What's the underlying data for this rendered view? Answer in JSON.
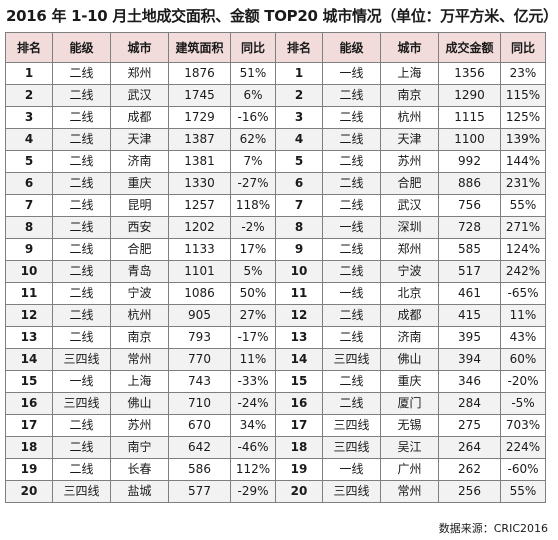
{
  "title": "2016 年 1-10 月土地成交面积、金额 TOP20 城市情况（单位：万平方米、亿元）",
  "headers": [
    "排名",
    "能级",
    "城市",
    "建筑面积",
    "同比",
    "排名",
    "能级",
    "城市",
    "成交金额",
    "同比"
  ],
  "area_rows": [
    {
      "rank": "1",
      "tier": "二线",
      "city": "郑州",
      "value": "1876",
      "yoy": "51%"
    },
    {
      "rank": "2",
      "tier": "二线",
      "city": "武汉",
      "value": "1745",
      "yoy": "6%"
    },
    {
      "rank": "3",
      "tier": "二线",
      "city": "成都",
      "value": "1729",
      "yoy": "-16%"
    },
    {
      "rank": "4",
      "tier": "二线",
      "city": "天津",
      "value": "1387",
      "yoy": "62%"
    },
    {
      "rank": "5",
      "tier": "二线",
      "city": "济南",
      "value": "1381",
      "yoy": "7%"
    },
    {
      "rank": "6",
      "tier": "二线",
      "city": "重庆",
      "value": "1330",
      "yoy": "-27%"
    },
    {
      "rank": "7",
      "tier": "二线",
      "city": "昆明",
      "value": "1257",
      "yoy": "118%"
    },
    {
      "rank": "8",
      "tier": "二线",
      "city": "西安",
      "value": "1202",
      "yoy": "-2%"
    },
    {
      "rank": "9",
      "tier": "二线",
      "city": "合肥",
      "value": "1133",
      "yoy": "17%"
    },
    {
      "rank": "10",
      "tier": "二线",
      "city": "青岛",
      "value": "1101",
      "yoy": "5%"
    },
    {
      "rank": "11",
      "tier": "二线",
      "city": "宁波",
      "value": "1086",
      "yoy": "50%"
    },
    {
      "rank": "12",
      "tier": "二线",
      "city": "杭州",
      "value": "905",
      "yoy": "27%"
    },
    {
      "rank": "13",
      "tier": "二线",
      "city": "南京",
      "value": "793",
      "yoy": "-17%"
    },
    {
      "rank": "14",
      "tier": "三四线",
      "city": "常州",
      "value": "770",
      "yoy": "11%"
    },
    {
      "rank": "15",
      "tier": "一线",
      "city": "上海",
      "value": "743",
      "yoy": "-33%"
    },
    {
      "rank": "16",
      "tier": "三四线",
      "city": "佛山",
      "value": "710",
      "yoy": "-24%"
    },
    {
      "rank": "17",
      "tier": "二线",
      "city": "苏州",
      "value": "670",
      "yoy": "34%"
    },
    {
      "rank": "18",
      "tier": "二线",
      "city": "南宁",
      "value": "642",
      "yoy": "-46%"
    },
    {
      "rank": "19",
      "tier": "二线",
      "city": "长春",
      "value": "586",
      "yoy": "112%"
    },
    {
      "rank": "20",
      "tier": "三四线",
      "city": "盐城",
      "value": "577",
      "yoy": "-29%"
    }
  ],
  "amount_rows": [
    {
      "rank": "1",
      "tier": "一线",
      "city": "上海",
      "value": "1356",
      "yoy": "23%"
    },
    {
      "rank": "2",
      "tier": "二线",
      "city": "南京",
      "value": "1290",
      "yoy": "115%"
    },
    {
      "rank": "3",
      "tier": "二线",
      "city": "杭州",
      "value": "1115",
      "yoy": "125%"
    },
    {
      "rank": "4",
      "tier": "二线",
      "city": "天津",
      "value": "1100",
      "yoy": "139%"
    },
    {
      "rank": "5",
      "tier": "二线",
      "city": "苏州",
      "value": "992",
      "yoy": "144%"
    },
    {
      "rank": "6",
      "tier": "二线",
      "city": "合肥",
      "value": "886",
      "yoy": "231%"
    },
    {
      "rank": "7",
      "tier": "二线",
      "city": "武汉",
      "value": "756",
      "yoy": "55%"
    },
    {
      "rank": "8",
      "tier": "一线",
      "city": "深圳",
      "value": "728",
      "yoy": "271%"
    },
    {
      "rank": "9",
      "tier": "二线",
      "city": "郑州",
      "value": "585",
      "yoy": "124%"
    },
    {
      "rank": "10",
      "tier": "二线",
      "city": "宁波",
      "value": "517",
      "yoy": "242%"
    },
    {
      "rank": "11",
      "tier": "一线",
      "city": "北京",
      "value": "461",
      "yoy": "-65%"
    },
    {
      "rank": "12",
      "tier": "二线",
      "city": "成都",
      "value": "415",
      "yoy": "11%"
    },
    {
      "rank": "13",
      "tier": "二线",
      "city": "济南",
      "value": "395",
      "yoy": "43%"
    },
    {
      "rank": "14",
      "tier": "三四线",
      "city": "佛山",
      "value": "394",
      "yoy": "60%"
    },
    {
      "rank": "15",
      "tier": "二线",
      "city": "重庆",
      "value": "346",
      "yoy": "-20%"
    },
    {
      "rank": "16",
      "tier": "二线",
      "city": "厦门",
      "value": "284",
      "yoy": "-5%"
    },
    {
      "rank": "17",
      "tier": "三四线",
      "city": "无锡",
      "value": "275",
      "yoy": "703%"
    },
    {
      "rank": "18",
      "tier": "三四线",
      "city": "吴江",
      "value": "264",
      "yoy": "224%"
    },
    {
      "rank": "19",
      "tier": "一线",
      "city": "广州",
      "value": "262",
      "yoy": "-60%"
    },
    {
      "rank": "20",
      "tier": "三四线",
      "city": "常州",
      "value": "256",
      "yoy": "55%"
    }
  ],
  "source": "数据来源：CRIC2016"
}
